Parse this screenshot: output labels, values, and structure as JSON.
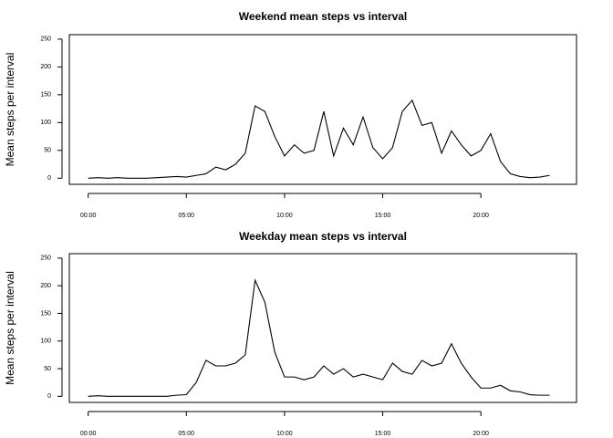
{
  "chart_data": [
    {
      "type": "line",
      "title": "Weekend mean steps vs interval",
      "y_label": "Mean steps per interval",
      "x": [
        0,
        0.5,
        1,
        1.5,
        2,
        2.5,
        3,
        3.5,
        4,
        4.5,
        5,
        5.5,
        6,
        6.5,
        7,
        7.5,
        8,
        8.5,
        9,
        9.5,
        10,
        10.5,
        11,
        11.5,
        12,
        12.5,
        13,
        13.5,
        14,
        14.5,
        15,
        15.5,
        16,
        16.5,
        17,
        17.5,
        18,
        18.5,
        19,
        19.5,
        20,
        20.5,
        21,
        21.5,
        22,
        22.5,
        23,
        23.5
      ],
      "series": [
        {
          "color": "#000000",
          "values": [
            0,
            1,
            0,
            1,
            0,
            0,
            0,
            1,
            2,
            3,
            2,
            5,
            8,
            20,
            15,
            25,
            45,
            130,
            120,
            75,
            40,
            60,
            45,
            50,
            120,
            40,
            90,
            60,
            110,
            55,
            35,
            55,
            120,
            140,
            95,
            100,
            45,
            85,
            60,
            40,
            50,
            80,
            30,
            8,
            3,
            1,
            2,
            5
          ]
        }
      ],
      "xlim": [
        -0.96,
        24.87
      ],
      "ylim": [
        -11,
        258
      ],
      "xticks": [
        {
          "value": 0,
          "label": "00:00"
        },
        {
          "value": 5,
          "label": "05:00"
        },
        {
          "value": 10,
          "label": "10:00"
        },
        {
          "value": 15,
          "label": "15:00"
        },
        {
          "value": 20,
          "label": "20:00"
        }
      ],
      "yticks": [
        0,
        50,
        100,
        150,
        200,
        250
      ]
    },
    {
      "type": "line",
      "title": "Weekday mean steps vs interval",
      "y_label": "Mean steps per interval",
      "x": [
        0,
        0.5,
        1,
        1.5,
        2,
        2.5,
        3,
        3.5,
        4,
        4.5,
        5,
        5.5,
        6,
        6.5,
        7,
        7.5,
        8,
        8.5,
        9,
        9.5,
        10,
        10.5,
        11,
        11.5,
        12,
        12.5,
        13,
        13.5,
        14,
        14.5,
        15,
        15.5,
        16,
        16.5,
        17,
        17.5,
        18,
        18.5,
        19,
        19.5,
        20,
        20.5,
        21,
        21.5,
        22,
        22.5,
        23,
        23.5
      ],
      "series": [
        {
          "color": "#000000",
          "values": [
            0,
            1,
            0,
            0,
            0,
            0,
            0,
            0,
            0,
            2,
            3,
            25,
            65,
            55,
            55,
            60,
            75,
            210,
            170,
            80,
            35,
            35,
            30,
            35,
            55,
            40,
            50,
            35,
            40,
            35,
            30,
            60,
            45,
            40,
            65,
            55,
            60,
            95,
            60,
            35,
            15,
            15,
            20,
            10,
            8,
            3,
            2,
            2
          ]
        }
      ],
      "xlim": [
        -0.96,
        24.87
      ],
      "ylim": [
        -11,
        258
      ],
      "xticks": [
        {
          "value": 0,
          "label": "00:00"
        },
        {
          "value": 5,
          "label": "05:00"
        },
        {
          "value": 10,
          "label": "10:00"
        },
        {
          "value": 15,
          "label": "15:00"
        },
        {
          "value": 20,
          "label": "20:00"
        }
      ],
      "yticks": [
        0,
        50,
        100,
        150,
        200,
        250
      ]
    }
  ]
}
